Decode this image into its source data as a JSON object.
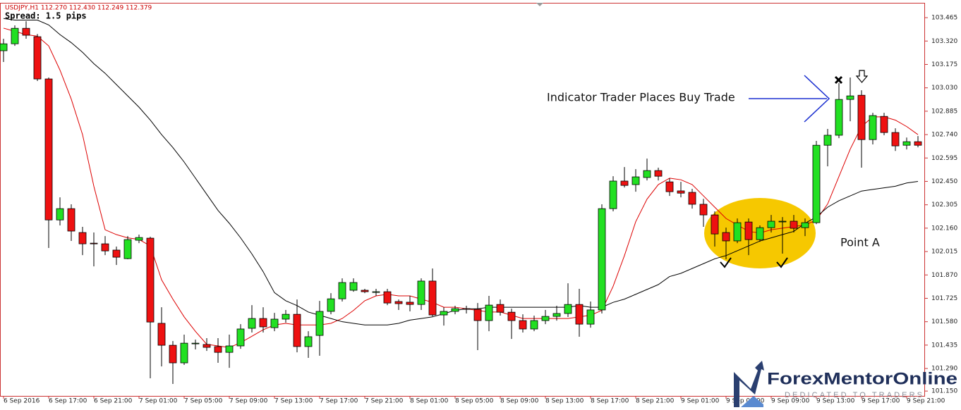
{
  "chart_data": {
    "type": "candlestick",
    "title": "USDJPY,H1  112.270 112.430 112.249 112.379",
    "subtitle": "Spread: 1.5 pips",
    "annotations": [
      "Indicator Trader Places Buy Trade",
      "Point A"
    ],
    "logo": {
      "brand": "ForexMentorOnline",
      "tagline": "DEDICATED TO TRADERS"
    },
    "up_color": "#22e022",
    "down_color": "#ee1111",
    "categories": [
      "6 Sep 2016",
      null,
      null,
      null,
      "6 Sep 17:00",
      null,
      null,
      null,
      "6 Sep 21:00",
      null,
      null,
      null,
      "7 Sep 01:00",
      null,
      null,
      null,
      "7 Sep 05:00",
      null,
      null,
      null,
      "7 Sep 09:00",
      null,
      null,
      null,
      "7 Sep 13:00",
      null,
      null,
      null,
      "7 Sep 17:00",
      null,
      null,
      null,
      "7 Sep 21:00",
      null,
      null,
      null,
      "8 Sep 01:00",
      null,
      null,
      null,
      "8 Sep 05:00",
      null,
      null,
      null,
      "8 Sep 09:00",
      null,
      null,
      null,
      "8 Sep 13:00",
      null,
      null,
      null,
      "8 Sep 17:00",
      null,
      null,
      null,
      "8 Sep 21:00",
      null,
      null,
      null,
      "9 Sep 01:00",
      null,
      null,
      null,
      "9 Sep 05:00",
      null,
      null,
      null,
      "9 Sep 09:00",
      null,
      null,
      null,
      "9 Sep 13:00",
      null,
      null,
      null,
      "9 Sep 17:00",
      null,
      null,
      null,
      "9 Sep 21:00",
      null
    ],
    "open": [
      103.26,
      103.303,
      103.399,
      103.347,
      103.085,
      102.211,
      102.281,
      102.133,
      102.067,
      102.063,
      102.024,
      101.971,
      102.085,
      102.098,
      101.57,
      101.434,
      101.325,
      101.443,
      101.439,
      101.426,
      101.39,
      101.43,
      101.539,
      101.6,
      101.543,
      101.596,
      101.626,
      101.426,
      101.495,
      101.644,
      101.722,
      101.775,
      101.775,
      101.766,
      101.766,
      101.705,
      101.701,
      101.687,
      101.832,
      101.622,
      101.644,
      101.661,
      101.657,
      101.587,
      101.687,
      101.639,
      101.587,
      101.535,
      101.587,
      101.613,
      101.631,
      101.687,
      101.565,
      101.653,
      102.281,
      102.452,
      102.43,
      102.474,
      102.517,
      102.447,
      102.391,
      102.382,
      102.308,
      102.242,
      102.133,
      102.081,
      102.198,
      102.089,
      102.163,
      102.203,
      102.203,
      102.163,
      102.194,
      102.674,
      102.736,
      102.958,
      102.984,
      102.709,
      102.853,
      102.753,
      102.674,
      102.696
    ],
    "high": [
      103.334,
      103.417,
      103.443,
      103.364,
      103.094,
      102.351,
      102.308,
      102.168,
      102.133,
      102.111,
      102.046,
      102.111,
      102.12,
      102.107,
      101.67,
      101.46,
      101.5,
      101.469,
      101.478,
      101.478,
      101.5,
      101.565,
      101.683,
      101.67,
      101.635,
      101.653,
      101.718,
      101.521,
      101.709,
      101.757,
      101.849,
      101.849,
      101.784,
      101.784,
      101.784,
      101.718,
      101.74,
      101.849,
      101.91,
      101.67,
      101.679,
      101.679,
      101.696,
      101.74,
      101.718,
      101.661,
      101.626,
      101.618,
      101.653,
      101.679,
      101.818,
      101.784,
      101.705,
      102.308,
      102.482,
      102.539,
      102.526,
      102.591,
      102.535,
      102.469,
      102.447,
      102.404,
      102.342,
      102.264,
      102.163,
      102.22,
      102.22,
      102.177,
      102.242,
      102.229,
      102.242,
      102.22,
      102.701,
      102.775,
      103.059,
      103.094,
      103.015,
      102.875,
      102.875,
      102.779,
      102.722,
      102.731
    ],
    "low": [
      103.19,
      103.29,
      103.334,
      103.072,
      102.037,
      102.177,
      102.081,
      101.993,
      101.923,
      101.993,
      101.932,
      101.967,
      102.067,
      101.229,
      101.303,
      101.194,
      101.312,
      101.408,
      101.399,
      101.325,
      101.294,
      101.412,
      101.513,
      101.513,
      101.521,
      101.574,
      101.39,
      101.356,
      101.369,
      101.626,
      101.705,
      101.766,
      101.757,
      101.74,
      101.683,
      101.653,
      101.644,
      101.653,
      101.613,
      101.556,
      101.626,
      101.631,
      101.404,
      101.521,
      101.618,
      101.473,
      101.513,
      101.521,
      101.565,
      101.587,
      101.609,
      101.487,
      101.543,
      101.631,
      102.264,
      102.412,
      102.386,
      102.456,
      102.456,
      102.36,
      102.351,
      102.281,
      102.168,
      102.046,
      101.967,
      102.067,
      101.993,
      102.076,
      102.133,
      102.002,
      102.133,
      102.111,
      102.185,
      102.543,
      102.718,
      102.823,
      102.535,
      102.679,
      102.736,
      102.639,
      102.648,
      102.661
    ],
    "close": [
      103.303,
      103.399,
      103.356,
      103.085,
      102.211,
      102.281,
      102.142,
      102.063,
      102.063,
      102.019,
      101.98,
      102.089,
      102.102,
      101.578,
      101.434,
      101.325,
      101.447,
      101.447,
      101.421,
      101.39,
      101.43,
      101.535,
      101.6,
      101.548,
      101.596,
      101.626,
      101.426,
      101.487,
      101.644,
      101.722,
      101.823,
      101.823,
      101.766,
      101.766,
      101.696,
      101.692,
      101.687,
      101.832,
      101.622,
      101.644,
      101.661,
      101.657,
      101.587,
      101.683,
      101.639,
      101.587,
      101.535,
      101.587,
      101.613,
      101.631,
      101.687,
      101.565,
      101.653,
      102.281,
      102.452,
      102.425,
      102.478,
      102.517,
      102.482,
      102.386,
      102.377,
      102.308,
      102.242,
      102.124,
      102.081,
      102.194,
      102.089,
      102.163,
      102.203,
      102.203,
      102.159,
      102.194,
      102.674,
      102.736,
      102.958,
      102.98,
      102.709,
      102.858,
      102.753,
      102.67,
      102.696,
      102.674
    ],
    "lines": [
      {
        "color": "#dd0000",
        "values": [
          103.4,
          103.38,
          103.36,
          103.35,
          103.29,
          103.14,
          102.96,
          102.74,
          102.42,
          102.15,
          102.12,
          102.1,
          102.09,
          102.05,
          101.84,
          101.72,
          101.61,
          101.52,
          101.44,
          101.43,
          101.42,
          101.45,
          101.49,
          101.53,
          101.56,
          101.57,
          101.56,
          101.56,
          101.56,
          101.57,
          101.6,
          101.65,
          101.71,
          101.74,
          101.75,
          101.74,
          101.74,
          101.72,
          101.7,
          101.67,
          101.67,
          101.66,
          101.65,
          101.64,
          101.64,
          101.62,
          101.6,
          101.6,
          101.6,
          101.6,
          101.6,
          101.61,
          101.62,
          101.65,
          101.8,
          101.99,
          102.2,
          102.34,
          102.43,
          102.47,
          102.46,
          102.43,
          102.36,
          102.29,
          102.22,
          102.18,
          102.14,
          102.13,
          102.15,
          102.16,
          102.17,
          102.18,
          102.21,
          102.31,
          102.48,
          102.65,
          102.79,
          102.85,
          102.85,
          102.83,
          102.79,
          102.74
        ]
      },
      {
        "color": "#000000",
        "values": [
          103.46,
          103.45,
          103.45,
          103.45,
          103.42,
          103.36,
          103.31,
          103.25,
          103.18,
          103.12,
          103.05,
          102.98,
          102.91,
          102.83,
          102.74,
          102.66,
          102.57,
          102.47,
          102.37,
          102.27,
          102.19,
          102.1,
          102.0,
          101.89,
          101.76,
          101.71,
          101.68,
          101.64,
          101.62,
          101.6,
          101.58,
          101.57,
          101.56,
          101.56,
          101.56,
          101.57,
          101.59,
          101.6,
          101.61,
          101.63,
          101.65,
          101.66,
          101.66,
          101.67,
          101.67,
          101.67,
          101.67,
          101.67,
          101.67,
          101.67,
          101.67,
          101.68,
          101.67,
          101.67,
          101.7,
          101.72,
          101.75,
          101.78,
          101.81,
          101.86,
          101.88,
          101.91,
          101.94,
          101.97,
          101.99,
          102.02,
          102.05,
          102.08,
          102.1,
          102.12,
          102.14,
          102.19,
          102.23,
          102.29,
          102.33,
          102.36,
          102.39,
          102.4,
          102.41,
          102.42,
          102.44,
          102.45
        ]
      }
    ],
    "ylim": [
      101.12,
      103.557
    ],
    "yticks": [
      103.465,
      {
        "value": 103.32,
        "label": "103.320"
      },
      103.175,
      {
        "value": 103.03,
        "label": "103.030"
      },
      102.885,
      {
        "value": 102.74,
        "label": "102.740"
      },
      102.595,
      {
        "value": 102.45,
        "label": "102.450"
      },
      102.305,
      {
        "value": 102.16,
        "label": "102.160"
      },
      102.015,
      {
        "value": 101.87,
        "label": "101.870"
      },
      101.725,
      {
        "value": 101.58,
        "label": "101.580"
      },
      101.435,
      {
        "value": 101.29,
        "label": "101.290"
      },
      {
        "value": 101.15,
        "label": "101.150"
      }
    ],
    "grid": false
  }
}
